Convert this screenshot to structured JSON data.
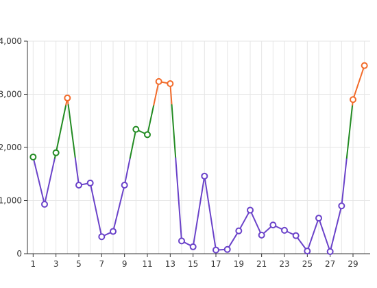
{
  "chart_data": {
    "type": "line",
    "title": "",
    "xlabel": "",
    "ylabel": "",
    "x": [
      1,
      2,
      3,
      4,
      5,
      6,
      7,
      8,
      9,
      10,
      11,
      12,
      13,
      14,
      15,
      16,
      17,
      18,
      19,
      20,
      21,
      22,
      23,
      24,
      25,
      26,
      27,
      28,
      29,
      30
    ],
    "xticks": [
      1,
      3,
      5,
      7,
      9,
      11,
      13,
      15,
      17,
      19,
      21,
      23,
      25,
      27,
      29
    ],
    "xticklabels": [
      "1",
      "3",
      "5",
      "7",
      "9",
      "11",
      "13",
      "15",
      "17",
      "19",
      "21",
      "23",
      "25",
      "27",
      "29"
    ],
    "yticks": [
      0,
      1000,
      2000,
      3000,
      4000
    ],
    "yticklabels": [
      "0",
      "1,000",
      "2,000",
      "3,000",
      "4,000"
    ],
    "ylim": [
      0,
      4000
    ],
    "xlim": [
      0.5,
      30.5
    ],
    "grid": "vertical and horizontal",
    "series": [
      {
        "values": [
          1820,
          930,
          1900,
          2930,
          1290,
          1330,
          320,
          420,
          1290,
          2340,
          2240,
          3240,
          3200,
          240,
          130,
          1460,
          70,
          80,
          430,
          820,
          350,
          540,
          440,
          340,
          50,
          670,
          40,
          900,
          2900,
          3540
        ]
      }
    ],
    "thresholds": [
      {
        "min": 0,
        "max": 1800,
        "color": "#6a42c9"
      },
      {
        "min": 1800,
        "max": 2800,
        "color": "#228b22"
      },
      {
        "min": 2800,
        "max": 100000,
        "color": "#f26b2a"
      }
    ]
  }
}
